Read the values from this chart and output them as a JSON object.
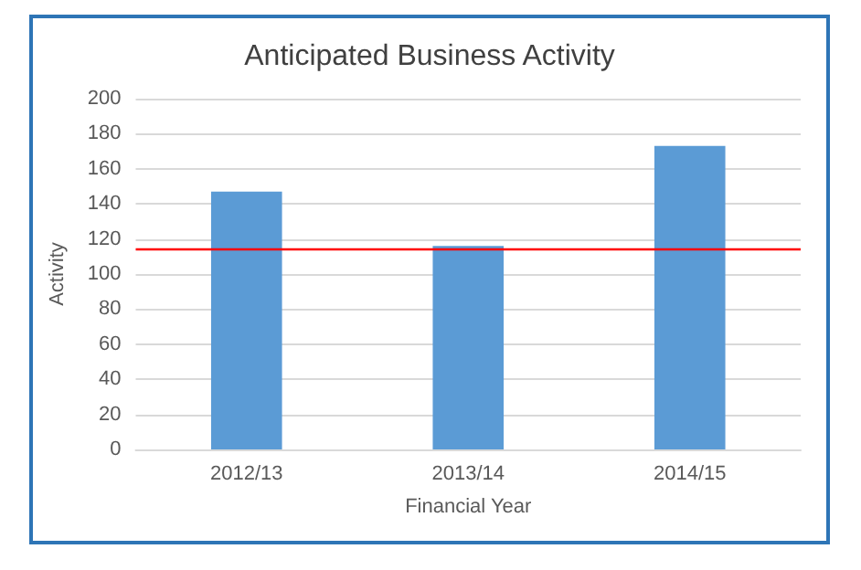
{
  "chart_data": {
    "type": "bar",
    "title": "Anticipated Business Activity",
    "xlabel": "Financial Year",
    "ylabel": "Activity",
    "categories": [
      "2012/13",
      "2013/14",
      "2014/15"
    ],
    "values": [
      147,
      116,
      173
    ],
    "color": "#5b9bd5",
    "ylim": [
      0,
      200
    ],
    "yticks": [
      0,
      20,
      40,
      60,
      80,
      100,
      120,
      140,
      160,
      180,
      200
    ],
    "grid": "y",
    "ref_lines": [
      {
        "axis": "y",
        "value": 114,
        "color": "#ff0000"
      }
    ]
  }
}
